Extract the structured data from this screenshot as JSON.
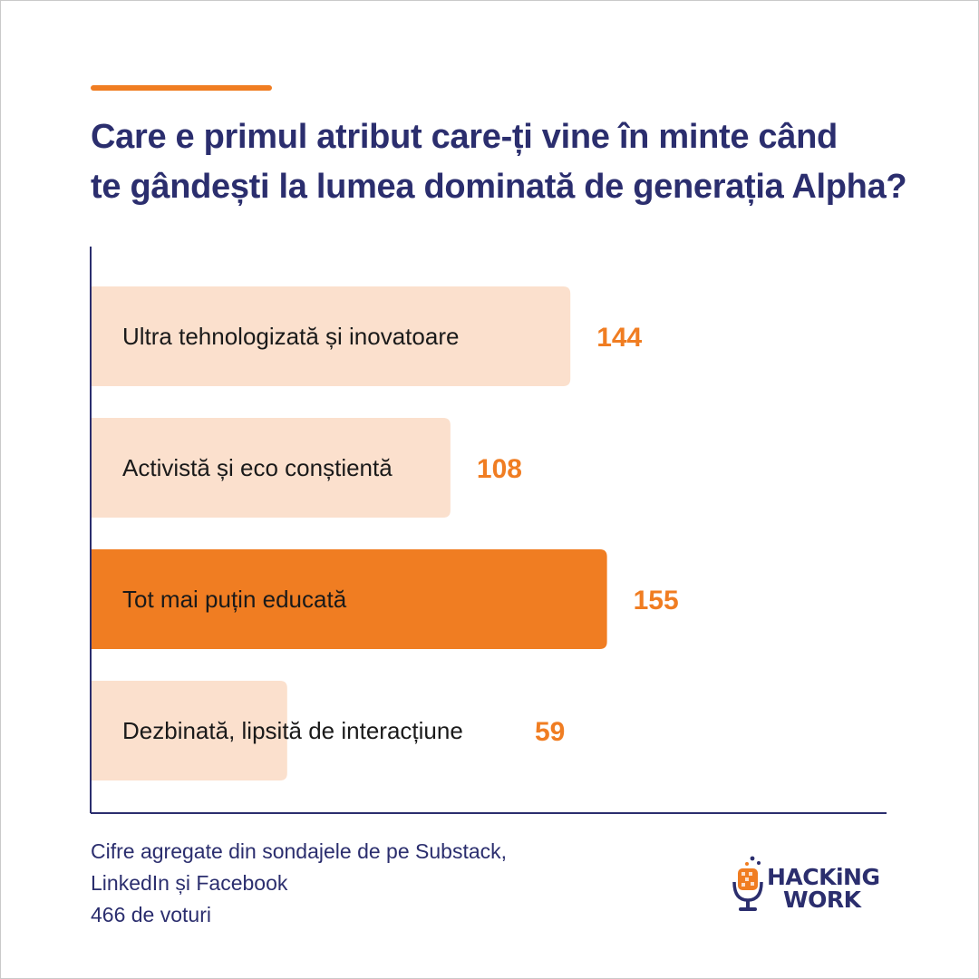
{
  "title": {
    "line1": "Care e primul atribut care-ți vine în minte când",
    "line2": "te gândești la lumea dominată de generația Alpha?"
  },
  "chart_data": {
    "type": "bar",
    "orientation": "horizontal",
    "categories": [
      "Ultra tehnologizată și inovatoare",
      "Activistă și eco conștientă",
      "Tot mai puțin educată",
      "Dezbinată, lipsită de interacțiune"
    ],
    "values": [
      144,
      108,
      155,
      59
    ],
    "highlight_index": 2,
    "xlim": [
      0,
      210
    ],
    "colors": {
      "bar": "#fbe0cd",
      "highlight_bar": "#f07d22",
      "value_label": "#f07d22",
      "category_label": "#1a1a1a",
      "axis": "#2b2e6e"
    }
  },
  "footnote": {
    "line1": "Cifre agregate din sondajele de pe Substack,",
    "line2": "LinkedIn și Facebook",
    "line3": "466 de voturi"
  },
  "logo": {
    "line1": "HACKiNG",
    "line2": "WORK",
    "icon": "microphone-icon",
    "colors": {
      "text": "#2b2e6e",
      "accent": "#f07d22"
    }
  }
}
